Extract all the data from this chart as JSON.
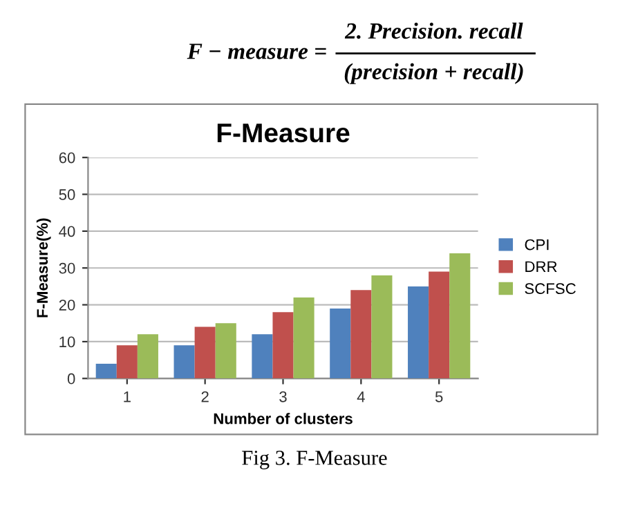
{
  "chart_data": {
    "type": "bar",
    "title": "F-Measure",
    "xlabel": "Number of clusters",
    "ylabel": "F-Measure(%)",
    "categories": [
      "1",
      "2",
      "3",
      "4",
      "5"
    ],
    "series": [
      {
        "name": "CPI",
        "color": "#4f81bd",
        "values": [
          4,
          9,
          12,
          19,
          25
        ]
      },
      {
        "name": "DRR",
        "color": "#c0504d",
        "values": [
          9,
          14,
          18,
          24,
          29
        ]
      },
      {
        "name": "SCFSC",
        "color": "#9bbb59",
        "values": [
          12,
          15,
          22,
          28,
          34
        ]
      }
    ],
    "ylim": [
      0,
      60
    ],
    "yticks": [
      0,
      10,
      20,
      30,
      40,
      50,
      60
    ],
    "grid": "y",
    "legend": "right",
    "annotations": [
      "F − measure =",
      "2. Precision. recall",
      "(precision + recall)",
      "Fig 3. F-Measure"
    ]
  }
}
